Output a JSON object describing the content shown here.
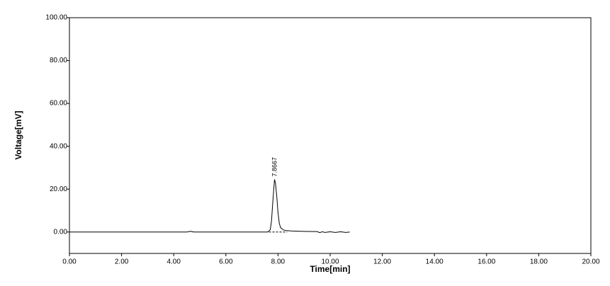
{
  "chart_data": {
    "type": "line",
    "xlabel": "Time[min]",
    "ylabel": "Voltage[mV]",
    "xlim": [
      0,
      20
    ],
    "ylim": [
      -10,
      100
    ],
    "xticks": [
      {
        "value": 0,
        "label": "0.00"
      },
      {
        "value": 2,
        "label": "2.00"
      },
      {
        "value": 4,
        "label": "4.00"
      },
      {
        "value": 6,
        "label": "6.00"
      },
      {
        "value": 8,
        "label": "8.00"
      },
      {
        "value": 10,
        "label": "10.00"
      },
      {
        "value": 12,
        "label": "12.00"
      },
      {
        "value": 14,
        "label": "14.00"
      },
      {
        "value": 16,
        "label": "16.00"
      },
      {
        "value": 18,
        "label": "18.00"
      },
      {
        "value": 20,
        "label": "20.00"
      }
    ],
    "yticks": [
      {
        "value": 0,
        "label": "0.00"
      },
      {
        "value": 20,
        "label": "20.00"
      },
      {
        "value": 40,
        "label": "40.00"
      },
      {
        "value": 60,
        "label": "60.00"
      },
      {
        "value": 80,
        "label": "80.00"
      },
      {
        "value": 100,
        "label": "100.00"
      }
    ],
    "series": [
      {
        "color": "#000000",
        "dashed": false,
        "x": [
          0,
          4.5,
          4.6,
          4.65,
          4.7,
          4.8,
          7.6,
          7.7,
          7.75,
          7.8,
          7.85,
          7.8667,
          7.9,
          7.95,
          8.0,
          8.05,
          8.1,
          8.2,
          8.3,
          8.5,
          9.0,
          9.5,
          9.6,
          9.7,
          9.8,
          10.0,
          10.2,
          10.4,
          10.6,
          10.75
        ],
        "values": [
          0,
          0,
          0.2,
          0.4,
          0.1,
          0,
          0,
          1,
          5,
          14,
          22,
          24.5,
          23,
          17,
          9,
          4,
          2,
          1,
          0.7,
          0.5,
          0.3,
          0.2,
          -0.3,
          0.1,
          -0.2,
          0.1,
          -0.2,
          0.1,
          -0.2,
          0
        ]
      },
      {
        "color": "#000000",
        "dashed": true,
        "x": [
          7.65,
          8.35
        ],
        "values": [
          0,
          0
        ]
      }
    ],
    "annotations": [
      {
        "text": "7.8667",
        "x": 7.8667,
        "y": 24.5
      }
    ]
  }
}
